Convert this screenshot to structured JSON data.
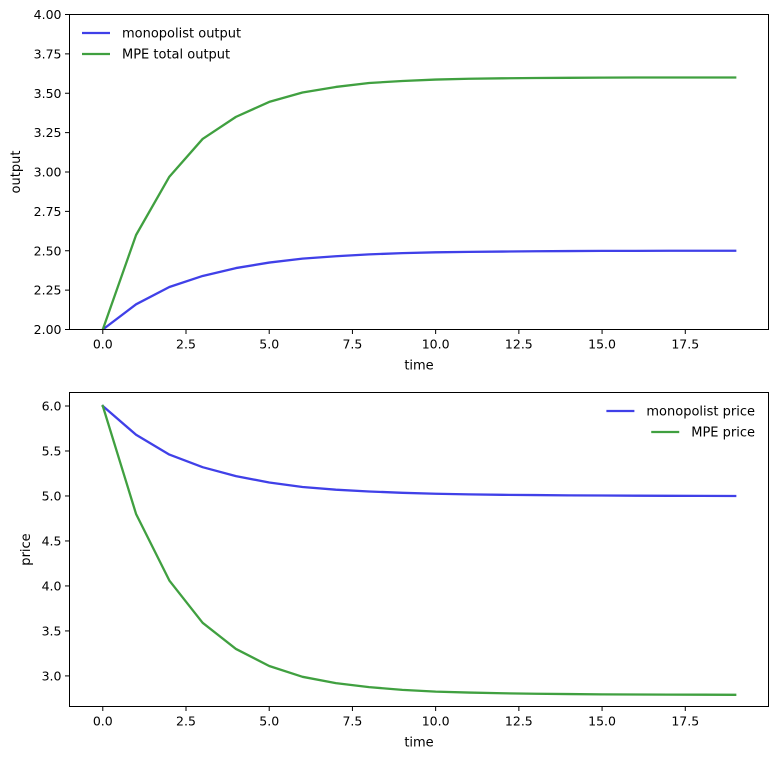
{
  "chart_data": [
    {
      "type": "line",
      "xlabel": "time",
      "ylabel": "output",
      "xlim": [
        -1,
        20
      ],
      "ylim": [
        2.0,
        4.0
      ],
      "xticks": [
        0.0,
        2.5,
        5.0,
        7.5,
        10.0,
        12.5,
        15.0,
        17.5
      ],
      "xtick_labels": [
        "0.0",
        "2.5",
        "5.0",
        "7.5",
        "10.0",
        "12.5",
        "15.0",
        "17.5"
      ],
      "yticks": [
        2.0,
        2.25,
        2.5,
        2.75,
        3.0,
        3.25,
        3.5,
        3.75,
        4.0
      ],
      "ytick_labels": [
        "2.00",
        "2.25",
        "2.50",
        "2.75",
        "3.00",
        "3.25",
        "3.50",
        "3.75",
        "4.00"
      ],
      "grid": false,
      "legend_position": "top-left",
      "x": [
        0,
        1,
        2,
        3,
        4,
        5,
        6,
        7,
        8,
        9,
        10,
        11,
        12,
        13,
        14,
        15,
        16,
        17,
        18,
        19
      ],
      "series": [
        {
          "name": "monopolist output",
          "color": "#4040e8",
          "values": [
            2.0,
            2.16,
            2.27,
            2.34,
            2.39,
            2.425,
            2.45,
            2.465,
            2.477,
            2.485,
            2.49,
            2.493,
            2.495,
            2.497,
            2.498,
            2.499,
            2.499,
            2.5,
            2.5,
            2.5
          ]
        },
        {
          "name": "MPE total output",
          "color": "#40a040",
          "values": [
            2.0,
            2.6,
            2.97,
            3.21,
            3.35,
            3.445,
            3.505,
            3.54,
            3.565,
            3.578,
            3.587,
            3.592,
            3.595,
            3.597,
            3.598,
            3.599,
            3.6,
            3.6,
            3.6,
            3.6
          ]
        }
      ]
    },
    {
      "type": "line",
      "xlabel": "time",
      "ylabel": "price",
      "xlim": [
        -1,
        20
      ],
      "ylim": [
        2.66,
        6.15
      ],
      "xticks": [
        0.0,
        2.5,
        5.0,
        7.5,
        10.0,
        12.5,
        15.0,
        17.5
      ],
      "xtick_labels": [
        "0.0",
        "2.5",
        "5.0",
        "7.5",
        "10.0",
        "12.5",
        "15.0",
        "17.5"
      ],
      "yticks": [
        3.0,
        3.5,
        4.0,
        4.5,
        5.0,
        5.5,
        6.0
      ],
      "ytick_labels": [
        "3.0",
        "3.5",
        "4.0",
        "4.5",
        "5.0",
        "5.5",
        "6.0"
      ],
      "grid": false,
      "legend_position": "top-right",
      "x": [
        0,
        1,
        2,
        3,
        4,
        5,
        6,
        7,
        8,
        9,
        10,
        11,
        12,
        13,
        14,
        15,
        16,
        17,
        18,
        19
      ],
      "series": [
        {
          "name": "monopolist price",
          "color": "#4040e8",
          "values": [
            6.0,
            5.68,
            5.46,
            5.32,
            5.22,
            5.15,
            5.1,
            5.07,
            5.05,
            5.035,
            5.025,
            5.018,
            5.013,
            5.01,
            5.007,
            5.005,
            5.003,
            5.002,
            5.001,
            5.0
          ]
        },
        {
          "name": "MPE price",
          "color": "#40a040",
          "values": [
            6.0,
            4.8,
            4.06,
            3.59,
            3.3,
            3.11,
            2.99,
            2.92,
            2.875,
            2.845,
            2.825,
            2.815,
            2.807,
            2.802,
            2.798,
            2.795,
            2.793,
            2.792,
            2.791,
            2.79
          ]
        }
      ]
    }
  ]
}
